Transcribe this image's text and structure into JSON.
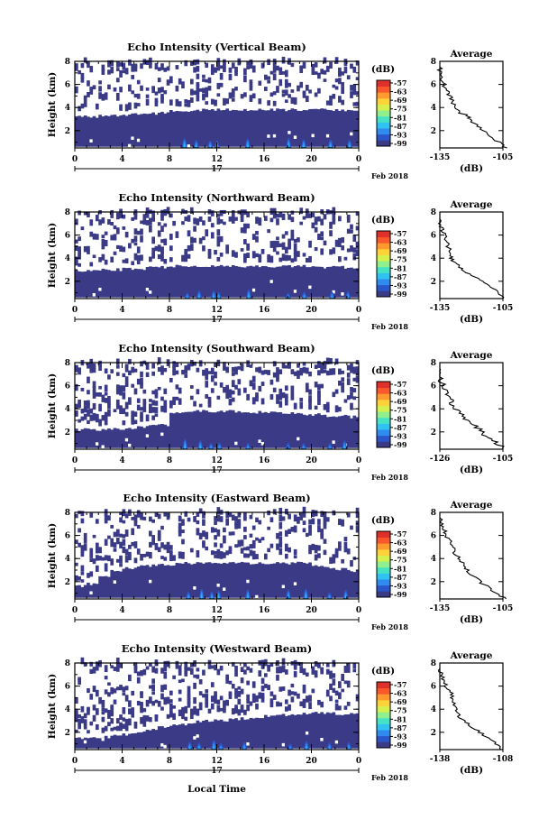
{
  "chart_data": {
    "type": "heatmap",
    "x_axis_caption": "Local Time",
    "x_ticks": [
      "0",
      "4",
      "8",
      "12",
      "16",
      "20",
      "0"
    ],
    "date_day": "17",
    "date_month_year": "Feb 2018",
    "y_label": "Height (km)",
    "y_ticks": [
      "2",
      "4",
      "6",
      "8"
    ],
    "height_range_km": [
      0.5,
      8
    ],
    "time_range_h": [
      0,
      24
    ],
    "colorbar": {
      "unit": "(dB)",
      "ticks": [
        "-57",
        "-63",
        "-69",
        "-75",
        "-81",
        "-87",
        "-93",
        "-99"
      ],
      "colors": [
        "#3a3a86",
        "#2b56c9",
        "#2f8bf0",
        "#2fc2f2",
        "#45e2c4",
        "#8ff08d",
        "#d6f04e",
        "#ffd23a",
        "#ff9a2e",
        "#f8582b",
        "#e0302c"
      ]
    },
    "profile_title": "Average",
    "profile_x_label": "(dB)",
    "profile_x_ticks": [
      "-135",
      "-105"
    ],
    "profile_y_ticks": [
      "2",
      "4",
      "6",
      "8"
    ],
    "panels": [
      {
        "title": "Echo Intensity (Vertical Beam)",
        "profile_x_ticks": [
          "-135",
          "-105"
        ],
        "layer_top_km": [
          3.2,
          3.2,
          3.3,
          3.3,
          3.4,
          3.4,
          3.5,
          3.6,
          3.7,
          3.7,
          3.8,
          3.8,
          3.8,
          3.8,
          3.8,
          3.8,
          3.8,
          3.8,
          3.8,
          3.8,
          3.8,
          3.8,
          3.8,
          3.8
        ],
        "profile_km": [
          [
            -104,
            0.5
          ],
          [
            -107,
            1.0
          ],
          [
            -111,
            1.5
          ],
          [
            -114,
            2.0
          ],
          [
            -118,
            2.5
          ],
          [
            -121,
            3.0
          ],
          [
            -122,
            3.3
          ],
          [
            -126,
            3.6
          ],
          [
            -127,
            4.0
          ],
          [
            -129,
            4.5
          ],
          [
            -130,
            5.0
          ],
          [
            -132,
            5.5
          ],
          [
            -133,
            6.0
          ],
          [
            -134,
            6.5
          ],
          [
            -135,
            7.0
          ],
          [
            -135,
            7.5
          ]
        ]
      },
      {
        "title": "Echo Intensity (Northward Beam)",
        "profile_x_ticks": [
          "-135",
          "-105"
        ],
        "layer_top_km": [
          2.9,
          2.9,
          3.0,
          3.0,
          3.1,
          3.1,
          3.2,
          3.2,
          3.3,
          3.3,
          3.3,
          3.3,
          3.3,
          3.3,
          3.3,
          3.3,
          3.3,
          3.3,
          3.3,
          3.3,
          3.2,
          3.2,
          3.2,
          3.2
        ],
        "profile_km": [
          [
            -105,
            0.5
          ],
          [
            -107,
            1.0
          ],
          [
            -111,
            1.5
          ],
          [
            -115,
            2.0
          ],
          [
            -120,
            2.5
          ],
          [
            -124,
            3.0
          ],
          [
            -126,
            3.4
          ],
          [
            -129,
            3.8
          ],
          [
            -130,
            4.2
          ],
          [
            -131,
            5.0
          ],
          [
            -132,
            5.5
          ],
          [
            -133,
            6.0
          ],
          [
            -134,
            6.5
          ],
          [
            -135,
            7.0
          ],
          [
            -135,
            7.5
          ]
        ]
      },
      {
        "title": "Echo Intensity (Southward Beam)",
        "profile_x_ticks": [
          "-126",
          "-105"
        ],
        "layer_top_km": [
          2.2,
          2.2,
          2.2,
          2.3,
          2.3,
          2.4,
          2.5,
          2.6,
          3.6,
          3.7,
          3.8,
          3.8,
          3.8,
          3.8,
          3.7,
          3.7,
          3.7,
          3.6,
          3.6,
          3.5,
          3.5,
          3.4,
          3.4,
          3.3
        ],
        "profile_km": [
          [
            -104,
            0.5
          ],
          [
            -107,
            1.0
          ],
          [
            -110,
            1.5
          ],
          [
            -112,
            2.0
          ],
          [
            -114,
            2.5
          ],
          [
            -117,
            3.0
          ],
          [
            -119,
            3.5
          ],
          [
            -121,
            4.0
          ],
          [
            -122,
            4.5
          ],
          [
            -123,
            5.0
          ],
          [
            -124,
            5.5
          ],
          [
            -125,
            6.0
          ],
          [
            -126,
            6.5
          ],
          [
            -126,
            7.0
          ],
          [
            -126,
            7.5
          ]
        ]
      },
      {
        "title": "Echo Intensity (Eastward Beam)",
        "profile_x_ticks": [
          "-135",
          "-105"
        ],
        "layer_top_km": [
          1.6,
          1.8,
          2.5,
          3.0,
          3.2,
          3.3,
          3.4,
          3.5,
          3.5,
          3.6,
          3.6,
          3.6,
          3.6,
          3.6,
          3.6,
          3.6,
          3.6,
          3.6,
          3.6,
          3.6,
          3.4,
          3.2,
          3.1,
          2.9
        ],
        "profile_km": [
          [
            -104,
            0.5
          ],
          [
            -108,
            1.0
          ],
          [
            -112,
            1.5
          ],
          [
            -116,
            2.0
          ],
          [
            -119,
            2.5
          ],
          [
            -122,
            3.0
          ],
          [
            -124,
            3.5
          ],
          [
            -126,
            4.0
          ],
          [
            -128,
            4.5
          ],
          [
            -129,
            5.0
          ],
          [
            -130,
            5.5
          ],
          [
            -132,
            6.0
          ],
          [
            -133,
            6.5
          ],
          [
            -134,
            7.0
          ],
          [
            -135,
            7.5
          ]
        ]
      },
      {
        "title": "Echo Intensity (Westward Beam)",
        "profile_x_ticks": [
          "-138",
          "-108"
        ],
        "layer_top_km": [
          1.5,
          1.5,
          1.6,
          1.7,
          1.8,
          2.0,
          2.2,
          2.4,
          2.6,
          2.7,
          2.9,
          3.0,
          3.0,
          3.1,
          3.2,
          3.3,
          3.4,
          3.5,
          3.6,
          3.6,
          3.7,
          3.7,
          3.6,
          3.6
        ],
        "profile_km": [
          [
            -108,
            0.5
          ],
          [
            -111,
            1.0
          ],
          [
            -115,
            1.5
          ],
          [
            -119,
            2.0
          ],
          [
            -123,
            2.5
          ],
          [
            -127,
            3.0
          ],
          [
            -129,
            3.5
          ],
          [
            -130,
            4.0
          ],
          [
            -131,
            4.5
          ],
          [
            -132,
            5.0
          ],
          [
            -133,
            5.5
          ],
          [
            -135,
            6.0
          ],
          [
            -136,
            6.5
          ],
          [
            -137,
            7.0
          ],
          [
            -138,
            7.5
          ]
        ]
      }
    ]
  }
}
